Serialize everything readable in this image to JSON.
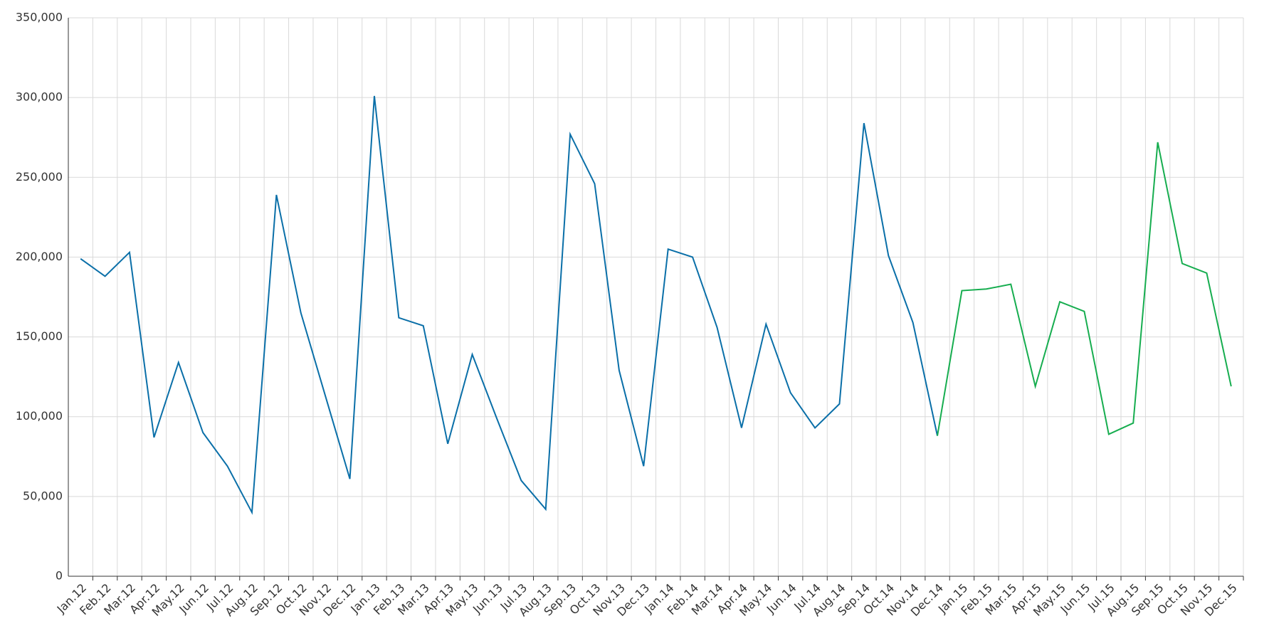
{
  "chart_data": {
    "type": "line",
    "categories": [
      "Jan.12",
      "Feb.12",
      "Mar.12",
      "Apr.12",
      "May.12",
      "Jun.12",
      "Jul.12",
      "Aug.12",
      "Sep.12",
      "Oct.12",
      "Nov.12",
      "Dec.12",
      "Jan.13",
      "Feb.13",
      "Mar.13",
      "Apr.13",
      "May.13",
      "Jun.13",
      "Jul.13",
      "Aug.13",
      "Sep.13",
      "Oct.13",
      "Nov.13",
      "Dec.13",
      "Jan.14",
      "Feb.14",
      "Mar.14",
      "Apr.14",
      "May.14",
      "Jun.14",
      "Jul.14",
      "Aug.14",
      "Sep.14",
      "Oct.14",
      "Nov.14",
      "Dec.14",
      "Jan.15",
      "Feb.15",
      "Mar.15",
      "Apr.15",
      "May.15",
      "Jun.15",
      "Jul.15",
      "Aug.15",
      "Sep.15",
      "Oct.15",
      "Nov.15",
      "Dec.15"
    ],
    "series": [
      {
        "color": "#0a6fa8",
        "values": [
          199000,
          188000,
          203000,
          87000,
          134000,
          90000,
          69000,
          40000,
          239000,
          165000,
          113000,
          61000,
          301000,
          162000,
          157000,
          83000,
          139000,
          99000,
          60000,
          42000,
          277000,
          246000,
          129000,
          69000,
          205000,
          200000,
          156000,
          93000,
          158000,
          115000,
          93000,
          108000,
          284000,
          201000,
          159000,
          88000,
          null,
          null,
          null,
          null,
          null,
          null,
          null,
          null,
          null,
          null,
          null,
          null
        ]
      },
      {
        "color": "#16ad4f",
        "values": [
          null,
          null,
          null,
          null,
          null,
          null,
          null,
          null,
          null,
          null,
          null,
          null,
          null,
          null,
          null,
          null,
          null,
          null,
          null,
          null,
          null,
          null,
          null,
          null,
          null,
          null,
          null,
          null,
          null,
          null,
          null,
          null,
          null,
          null,
          null,
          88000,
          179000,
          180000,
          183000,
          119000,
          172000,
          166000,
          89000,
          96000,
          272000,
          196000,
          190000,
          119000
        ]
      }
    ],
    "ylim": [
      0,
      350000
    ],
    "yticks": [
      0,
      {
        "value": 50000,
        "label": "50,000"
      },
      {
        "value": 100000,
        "label": "100,000"
      },
      {
        "value": 150000,
        "label": "150,000"
      },
      {
        "value": 200000,
        "label": "200,000"
      },
      {
        "value": 250000,
        "label": "250,000"
      },
      {
        "value": 300000,
        "label": "300,000"
      },
      {
        "value": 350000,
        "label": "350,000"
      }
    ],
    "grid": true
  }
}
